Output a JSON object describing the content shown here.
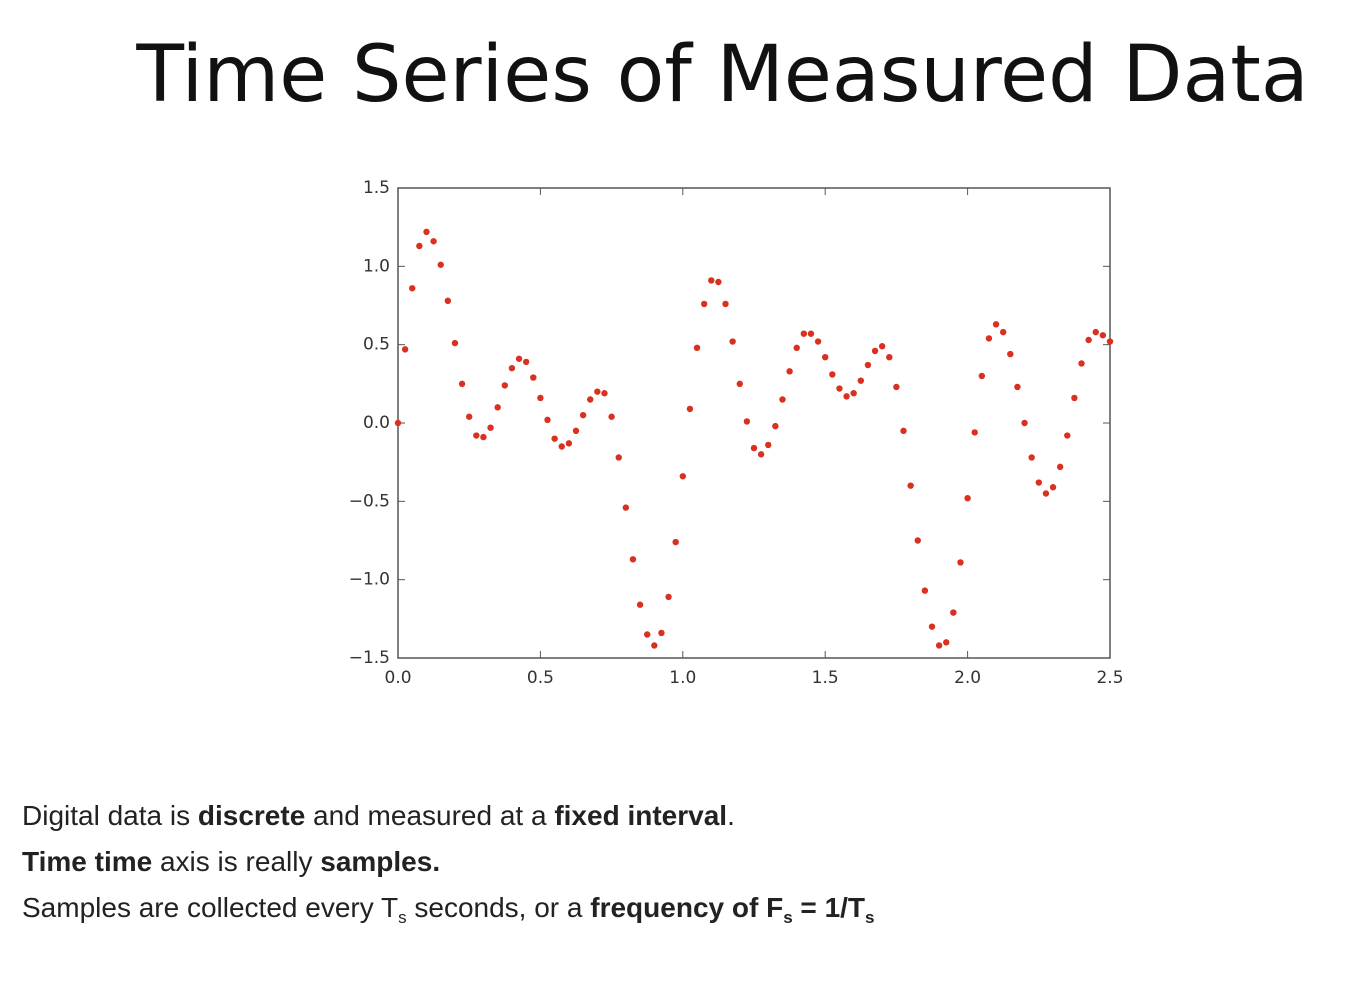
{
  "slide": {
    "title": "Time Series of Measured Data",
    "notes": [
      [
        {
          "text": "Digital data is "
        },
        {
          "text": "discrete",
          "bold": true
        },
        {
          "text": " and measured at a "
        },
        {
          "text": "fixed interval",
          "bold": true
        },
        {
          "text": "."
        }
      ],
      [
        {
          "text": "Time time",
          "bold": true
        },
        {
          "text": " axis is really "
        },
        {
          "text": "samples.",
          "bold": true
        }
      ],
      [
        {
          "text": "Samples are collected every T"
        },
        {
          "text": "s",
          "sub": true
        },
        {
          "text": " seconds, or a "
        },
        {
          "text": "frequency of F",
          "bold": true
        },
        {
          "text": "s",
          "bold": true,
          "sub": true
        },
        {
          "text": " = 1/T",
          "bold": true
        },
        {
          "text": "s",
          "bold": true,
          "sub": true
        }
      ]
    ]
  },
  "chart_data": {
    "type": "scatter",
    "color": "#d9301f",
    "xlim": [
      0,
      2.5
    ],
    "ylim": [
      -1.5,
      1.5
    ],
    "xticks": [
      {
        "value": 0,
        "label": "0.0"
      },
      {
        "value": 0.5,
        "label": "0.5"
      },
      {
        "value": 1,
        "label": "1.0"
      },
      {
        "value": 1.5,
        "label": "1.5"
      },
      {
        "value": 2,
        "label": "2.0"
      },
      {
        "value": 2.5,
        "label": "2.5"
      }
    ],
    "yticks": [
      {
        "value": -1.5,
        "label": "−1.5"
      },
      {
        "value": -1,
        "label": "−1.0"
      },
      {
        "value": -0.5,
        "label": "−0.5"
      },
      {
        "value": 0,
        "label": "0.0"
      },
      {
        "value": 0.5,
        "label": "0.5"
      },
      {
        "value": 1,
        "label": "1.0"
      },
      {
        "value": 1.5,
        "label": "1.5"
      }
    ],
    "x": [
      0,
      0.025,
      0.05,
      0.075,
      0.1,
      0.125,
      0.15,
      0.175,
      0.2,
      0.225,
      0.25,
      0.275,
      0.3,
      0.325,
      0.35,
      0.375,
      0.4,
      0.425,
      0.45,
      0.475,
      0.5,
      0.525,
      0.55,
      0.575,
      0.6,
      0.625,
      0.65,
      0.675,
      0.7,
      0.725,
      0.75,
      0.775,
      0.8,
      0.825,
      0.85,
      0.875,
      0.9,
      0.925,
      0.95,
      0.975,
      1,
      1.025,
      1.05,
      1.075,
      1.1,
      1.125,
      1.15,
      1.175,
      1.2,
      1.225,
      1.25,
      1.275,
      1.3,
      1.325,
      1.35,
      1.375,
      1.4,
      1.425,
      1.45,
      1.475,
      1.5,
      1.525,
      1.55,
      1.575,
      1.6,
      1.625,
      1.65,
      1.675,
      1.7,
      1.725,
      1.75,
      1.775,
      1.8,
      1.825,
      1.85,
      1.875,
      1.9,
      1.925,
      1.95,
      1.975,
      2,
      2.025,
      2.05,
      2.075,
      2.1,
      2.125,
      2.15,
      2.175,
      2.2,
      2.225,
      2.25,
      2.275,
      2.3,
      2.325,
      2.35,
      2.375,
      2.4,
      2.425,
      2.45,
      2.475,
      2.5
    ],
    "values": [
      0,
      0.47,
      0.86,
      1.13,
      1.22,
      1.16,
      1.01,
      0.78,
      0.51,
      0.25,
      0.04,
      -0.08,
      -0.09,
      -0.03,
      0.1,
      0.24,
      0.35,
      0.41,
      0.39,
      0.29,
      0.16,
      0.02,
      -0.1,
      -0.15,
      -0.13,
      -0.05,
      0.05,
      0.15,
      0.2,
      0.19,
      0.04,
      -0.22,
      -0.54,
      -0.87,
      -1.16,
      -1.35,
      -1.42,
      -1.34,
      -1.11,
      -0.76,
      -0.34,
      0.09,
      0.48,
      0.76,
      0.91,
      0.9,
      0.76,
      0.52,
      0.25,
      0.01,
      -0.16,
      -0.2,
      -0.14,
      -0.02,
      0.15,
      0.33,
      0.48,
      0.57,
      0.57,
      0.52,
      0.42,
      0.31,
      0.22,
      0.17,
      0.19,
      0.27,
      0.37,
      0.46,
      0.49,
      0.42,
      0.23,
      -0.05,
      -0.4,
      -0.75,
      -1.07,
      -1.3,
      -1.42,
      -1.4,
      -1.21,
      -0.89,
      -0.48,
      -0.06,
      0.3,
      0.54,
      0.63,
      0.58,
      0.44,
      0.23,
      0,
      -0.22,
      -0.38,
      -0.45,
      -0.41,
      -0.28,
      -0.08,
      0.16,
      0.38,
      0.53,
      0.58,
      0.56,
      0.52
    ]
  }
}
